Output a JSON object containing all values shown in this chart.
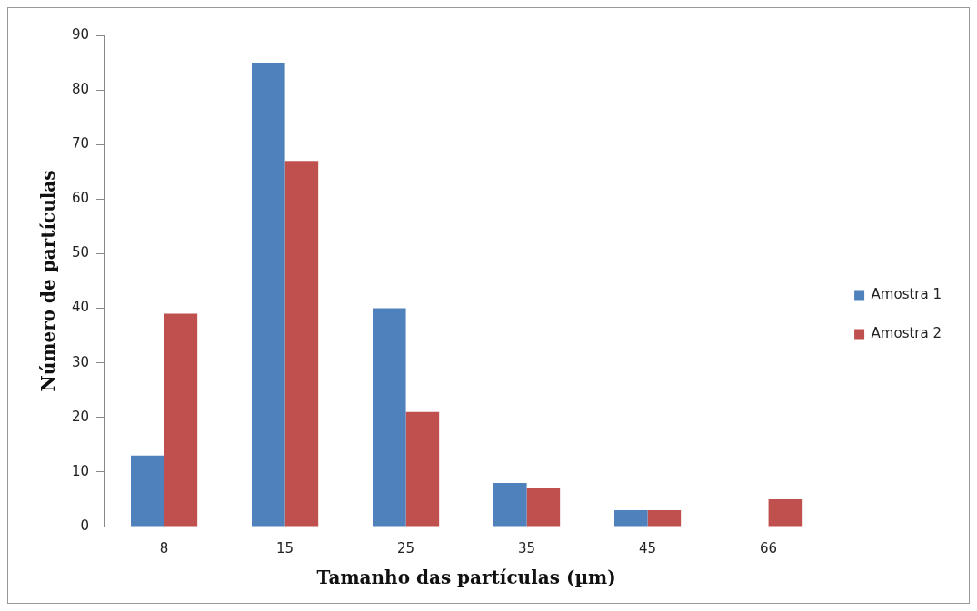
{
  "chart_data": {
    "type": "bar",
    "xlabel": "Tamanho das partículas (µm)",
    "ylabel": "Número de partículas",
    "categories": [
      "8",
      "15",
      "25",
      "35",
      "45",
      "66"
    ],
    "series": [
      {
        "name": "Amostra 1",
        "color": "#4f81bd",
        "values": [
          13,
          85,
          40,
          8,
          3,
          0
        ]
      },
      {
        "name": "Amostra 2",
        "color": "#c0504d",
        "values": [
          39,
          67,
          21,
          7,
          3,
          5
        ]
      }
    ],
    "ylim": [
      0,
      90
    ],
    "yticks": [
      0,
      10,
      20,
      30,
      40,
      50,
      60,
      70,
      80,
      90
    ],
    "grid": false,
    "legend": "right"
  }
}
